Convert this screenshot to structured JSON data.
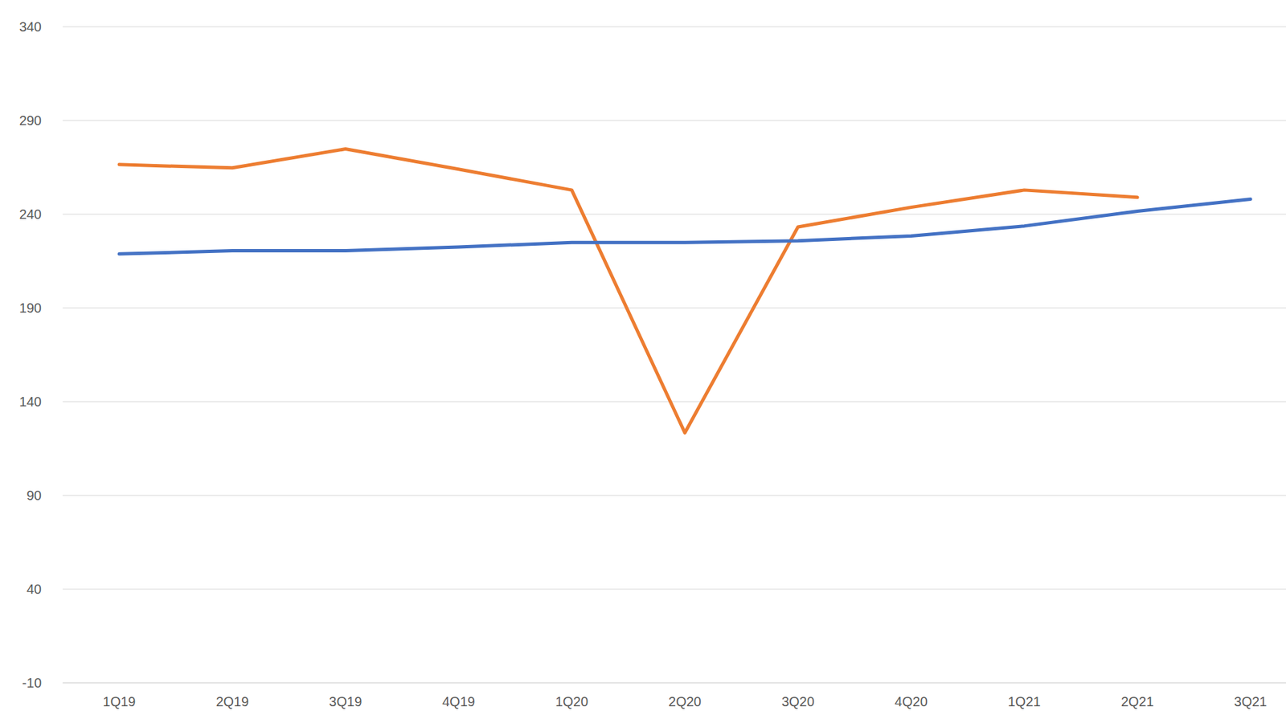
{
  "chart_data": {
    "type": "line",
    "categories": [
      "1Q19",
      "2Q19",
      "3Q19",
      "4Q19",
      "1Q20",
      "2Q20",
      "3Q20",
      "4Q20",
      "1Q21",
      "2Q21",
      "3Q21"
    ],
    "series": [
      {
        "color": "#ed7d31",
        "values": [
          266.5,
          264.7,
          274.8,
          264,
          252.9,
          123.4,
          233.2,
          243.7,
          252.9,
          249,
          null
        ]
      },
      {
        "color": "#4472c4",
        "values": [
          218.8,
          220.5,
          220.5,
          222.5,
          224.9,
          224.9,
          225.8,
          228.4,
          233.7,
          241.6,
          248
        ]
      }
    ],
    "ylim": [
      -10,
      340
    ],
    "yticks": [
      -10,
      40,
      90,
      140,
      190,
      240,
      290,
      340
    ],
    "grid": true
  }
}
